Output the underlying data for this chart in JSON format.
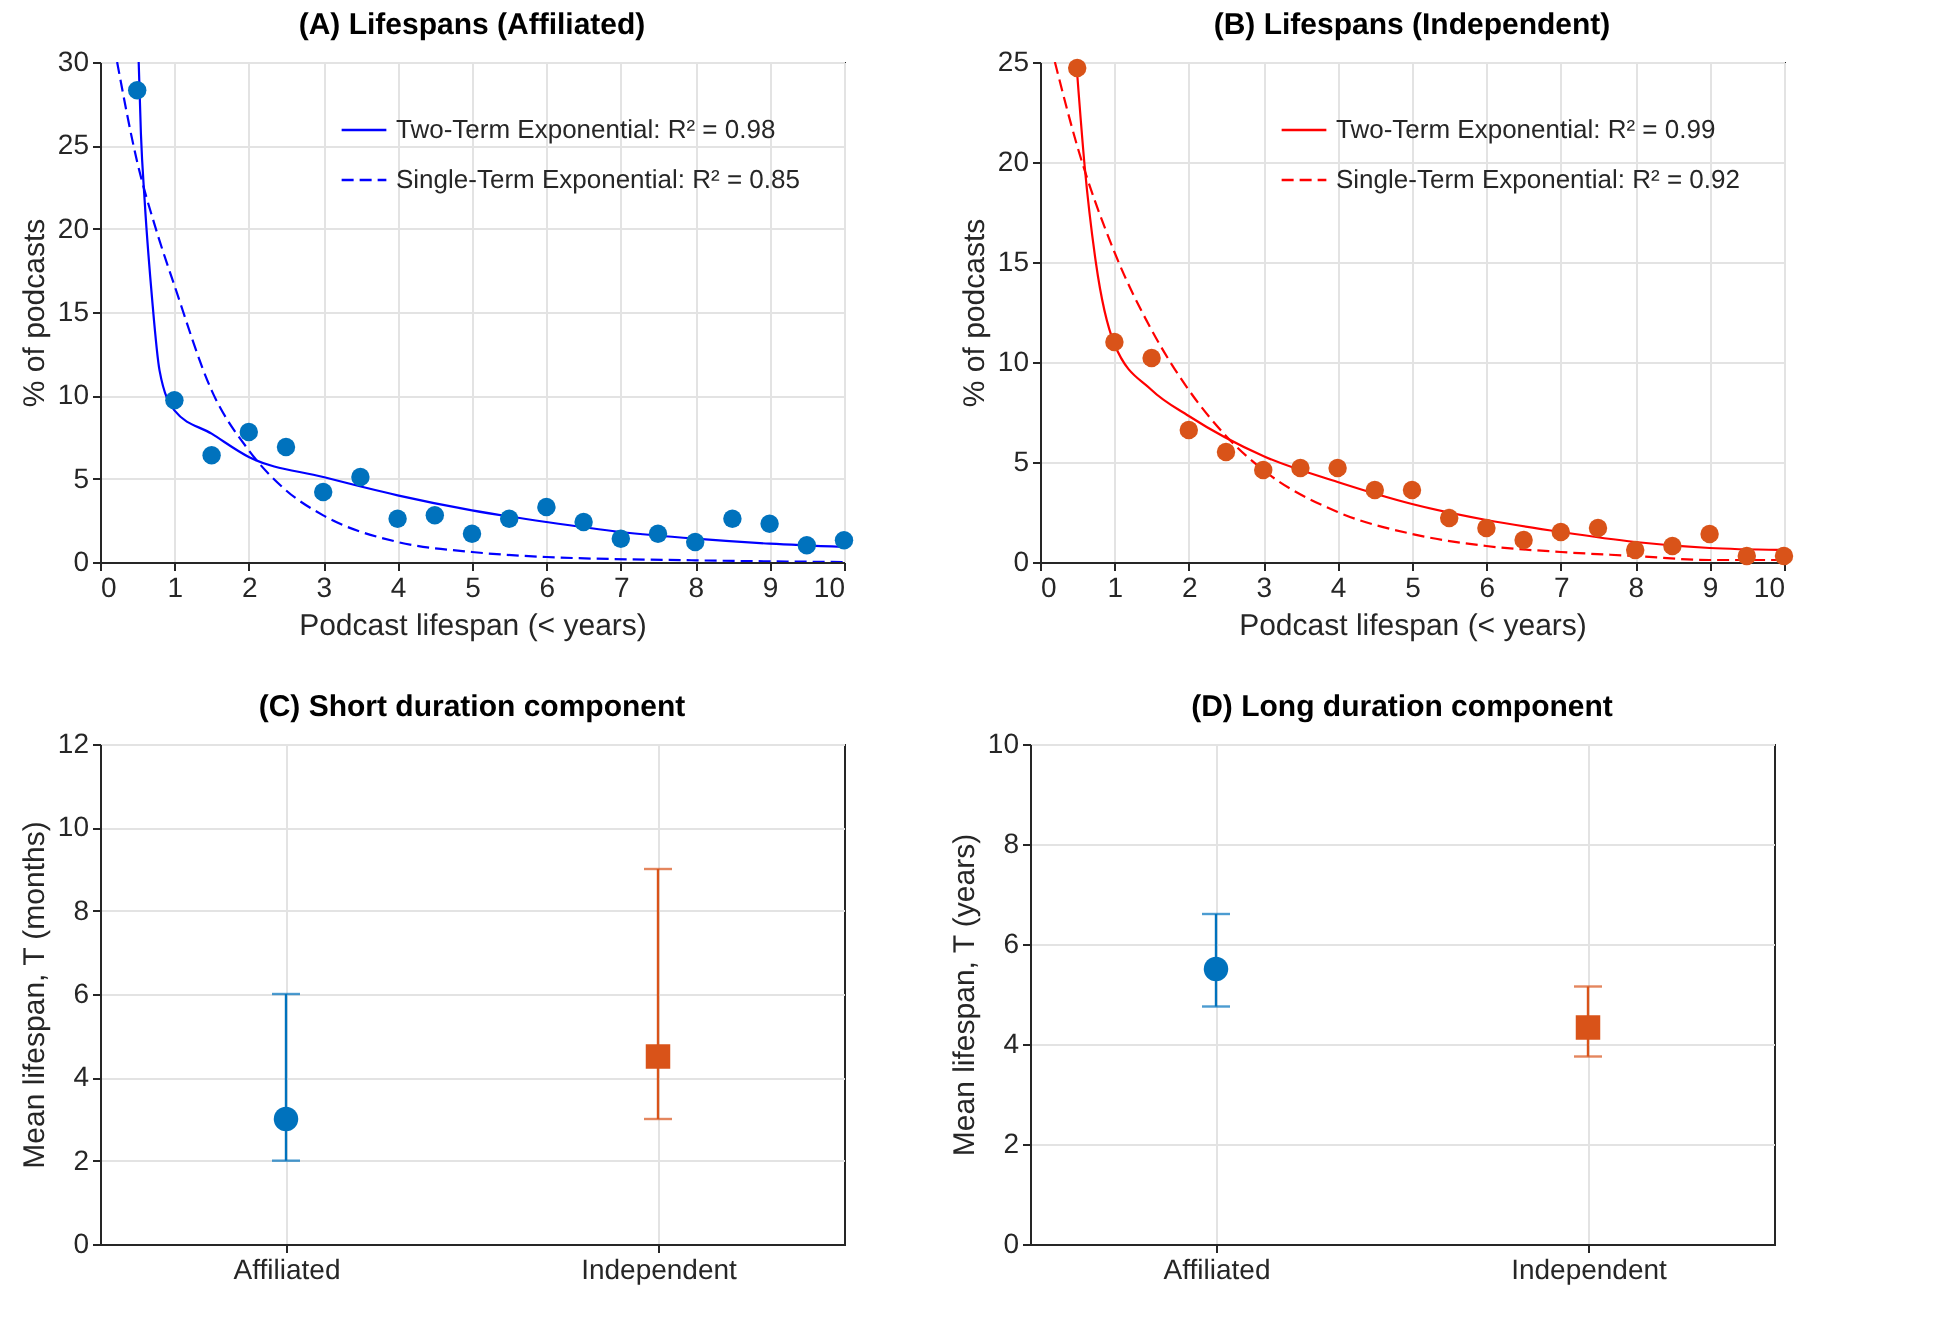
{
  "chart_data": [
    {
      "type": "scatter",
      "title": "(A) Lifespans (Affiliated)",
      "xlabel": "Podcast lifespan (< years)",
      "ylabel": "% of podcasts",
      "x": [
        0.5,
        1,
        1.5,
        2,
        2.5,
        3,
        3.5,
        4,
        4.5,
        5,
        5.5,
        6,
        6.5,
        7,
        7.5,
        8,
        8.5,
        9,
        9.5,
        10
      ],
      "xlim": [
        0,
        10
      ],
      "xticks": [
        0,
        1,
        2,
        3,
        4,
        5,
        6,
        7,
        8,
        9,
        10
      ],
      "ylim": [
        0,
        30
      ],
      "yticks": [
        0,
        5,
        10,
        15,
        20,
        25,
        30
      ],
      "grid": true,
      "legend": "top right",
      "series": [
        {
          "color": "#0072bd",
          "marker": "circle",
          "values": [
            28.3,
            9.7,
            6.4,
            7.8,
            6.9,
            4.2,
            5.1,
            2.6,
            2.8,
            1.7,
            2.6,
            3.3,
            2.4,
            1.4,
            1.7,
            1.2,
            2.6,
            2.3,
            1.0,
            1.3
          ]
        },
        {
          "type": "line",
          "name": "Two-Term Exponential: R² = 0.98",
          "color": "#0000ff",
          "line_style": "solid",
          "x": [
            0.52,
            0.55,
            0.6,
            0.7,
            0.8,
            1,
            1.5,
            2,
            3,
            4,
            5,
            6,
            7,
            8,
            9,
            10
          ],
          "values": [
            30,
            25.7,
            21.7,
            15.8,
            11.5,
            9.1,
            7.7,
            6.3,
            5.1,
            4.0,
            3.1,
            2.4,
            1.8,
            1.4,
            1.1,
            0.9
          ]
        },
        {
          "type": "line",
          "name": "Single-Term Exponential: R² = 0.85",
          "color": "#0000ff",
          "line_style": "dashed",
          "x": [
            0.23,
            0.5,
            0.75,
            1,
            1.5,
            2,
            2.5,
            3,
            4,
            5,
            6,
            8,
            10
          ],
          "values": [
            30,
            24,
            20,
            16.6,
            10.3,
            6.7,
            4.3,
            2.8,
            1.2,
            0.6,
            0.3,
            0.1,
            0
          ]
        }
      ]
    },
    {
      "type": "scatter",
      "title": "(B) Lifespans (Independent)",
      "xlabel": "Podcast lifespan (< years)",
      "ylabel": "% of podcasts",
      "x": [
        0.5,
        1,
        1.5,
        2,
        2.5,
        3,
        3.5,
        4,
        4.5,
        5,
        5.5,
        6,
        6.5,
        7,
        7.5,
        8,
        8.5,
        9,
        9.5,
        10
      ],
      "xlim": [
        0,
        10
      ],
      "xticks": [
        0,
        1,
        2,
        3,
        4,
        5,
        6,
        7,
        8,
        9,
        10
      ],
      "ylim": [
        0,
        25
      ],
      "yticks": [
        0,
        5,
        10,
        15,
        20,
        25
      ],
      "grid": true,
      "legend": "top right",
      "series": [
        {
          "color": "#d95319",
          "marker": "circle",
          "values": [
            24.7,
            11,
            10.2,
            6.6,
            5.5,
            4.6,
            4.7,
            4.7,
            3.6,
            3.6,
            2.2,
            1.7,
            1.1,
            1.5,
            1.7,
            0.6,
            0.8,
            1.4,
            0.3,
            0.3
          ]
        },
        {
          "type": "line",
          "name": "Two-Term Exponential: R² = 0.99",
          "color": "#ff0000",
          "line_style": "solid",
          "x": [
            0.5,
            0.6,
            0.75,
            1,
            1.5,
            2,
            3,
            4,
            5,
            6,
            7,
            8,
            9,
            10
          ],
          "values": [
            24.4,
            19.8,
            15,
            10.9,
            8.6,
            7.3,
            5.3,
            4.0,
            2.9,
            2.1,
            1.5,
            1.0,
            0.7,
            0.6
          ]
        },
        {
          "type": "line",
          "name": "Single-Term Exponential: R² = 0.92",
          "color": "#ff0000",
          "line_style": "dashed",
          "x": [
            0.2,
            0.5,
            1,
            1.5,
            2,
            2.5,
            3,
            4,
            5,
            6,
            7,
            8,
            9,
            10
          ],
          "values": [
            25,
            20.8,
            15.5,
            11.6,
            8.6,
            6.3,
            4.6,
            2.5,
            1.4,
            0.8,
            0.5,
            0.3,
            0.1,
            0.1
          ]
        }
      ]
    },
    {
      "type": "scatter",
      "title": "(C) Short duration component",
      "ylabel": "Mean lifespan, T (months)",
      "categories": [
        "Affiliated",
        "Independent"
      ],
      "ylim": [
        0,
        12
      ],
      "yticks": [
        0,
        2,
        4,
        6,
        8,
        10,
        12
      ],
      "grid": true,
      "series": [
        {
          "color": "#0072bd",
          "marker": "circle",
          "x": [
            "Affiliated"
          ],
          "values": [
            3
          ],
          "errors": [
            [
              2,
              6
            ]
          ]
        },
        {
          "color": "#d95319",
          "marker": "square",
          "x": [
            "Independent"
          ],
          "values": [
            4.5
          ],
          "errors": [
            [
              3,
              9
            ]
          ]
        }
      ]
    },
    {
      "type": "scatter",
      "title": "(D) Long duration component",
      "ylabel": "Mean lifespan, T (years)",
      "categories": [
        "Affiliated",
        "Independent"
      ],
      "ylim": [
        0,
        10
      ],
      "yticks": [
        0,
        2,
        4,
        6,
        8,
        10
      ],
      "grid": true,
      "series": [
        {
          "color": "#0072bd",
          "marker": "circle",
          "x": [
            "Affiliated"
          ],
          "values": [
            5.5
          ],
          "errors": [
            [
              4.75,
              6.6
            ]
          ]
        },
        {
          "color": "#d95319",
          "marker": "square",
          "x": [
            "Independent"
          ],
          "values": [
            4.33
          ],
          "errors": [
            [
              3.75,
              5.15
            ]
          ]
        }
      ]
    }
  ]
}
